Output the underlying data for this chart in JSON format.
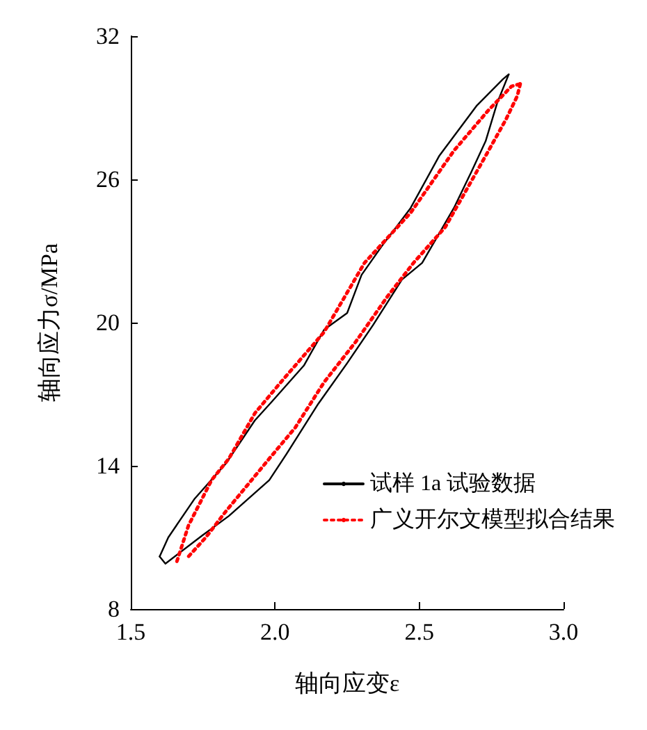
{
  "chart_data": {
    "type": "line",
    "xlabel": "轴向应变ε",
    "ylabel": "轴向应力σ/MPa",
    "xlim": [
      1.5,
      3.0
    ],
    "xticks": [
      {
        "value": 1.5,
        "label": "1.5"
      },
      {
        "value": 2.0,
        "label": "2.0"
      },
      {
        "value": 2.5,
        "label": "2.5"
      },
      {
        "value": 3.0,
        "label": "3.0"
      }
    ],
    "ylim": [
      8,
      32
    ],
    "yticks": [
      8,
      14,
      20,
      26,
      32
    ],
    "grid": false,
    "legend": "bottom right",
    "marker": "none",
    "series": [
      {
        "name": "试样 1a 试验数据",
        "color": "#000000",
        "line_style": "solid",
        "x": [
          1.6,
          1.63,
          1.72,
          1.83,
          1.93,
          1.99,
          2.1,
          2.17,
          2.25,
          2.3,
          2.37,
          2.47,
          2.57,
          2.7,
          2.79,
          2.81
        ],
        "values": [
          10.2,
          11.0,
          12.6,
          14.1,
          15.9,
          16.7,
          18.2,
          19.7,
          20.4,
          22.0,
          23.2,
          24.8,
          27.0,
          29.1,
          30.2,
          30.4
        ]
      },
      {
        "color": "#000000",
        "line_style": "solid",
        "x": [
          2.81,
          2.77,
          2.73,
          2.68,
          2.62,
          2.51,
          2.44,
          2.34,
          2.25,
          2.15,
          2.04,
          1.98,
          1.84,
          1.75,
          1.62,
          1.6
        ],
        "values": [
          30.4,
          29.2,
          27.6,
          26.3,
          24.8,
          22.5,
          21.8,
          19.9,
          18.3,
          16.6,
          14.5,
          13.4,
          11.9,
          11.1,
          9.9,
          10.2
        ]
      },
      {
        "name": "广义开尔文模型拟合结果",
        "color": "#ff0000",
        "line_style": "dotted",
        "x": [
          1.66,
          1.7,
          1.78,
          1.84,
          1.93,
          2.02,
          2.17,
          2.31,
          2.47,
          2.62,
          2.74,
          2.82,
          2.85
        ],
        "values": [
          10.0,
          11.5,
          13.4,
          14.3,
          16.2,
          17.5,
          19.6,
          22.5,
          24.6,
          27.2,
          28.9,
          29.9,
          30.0
        ]
      },
      {
        "color": "#ff0000",
        "line_style": "dotted",
        "x": [
          2.85,
          2.84,
          2.8,
          2.74,
          2.67,
          2.59,
          2.48,
          2.39,
          2.28,
          2.17,
          2.07,
          1.98,
          1.83,
          1.76,
          1.7
        ],
        "values": [
          30.0,
          29.5,
          28.5,
          27.2,
          25.7,
          24.0,
          22.5,
          21.1,
          19.2,
          17.5,
          15.6,
          14.3,
          12.1,
          11.0,
          10.2
        ]
      }
    ]
  }
}
